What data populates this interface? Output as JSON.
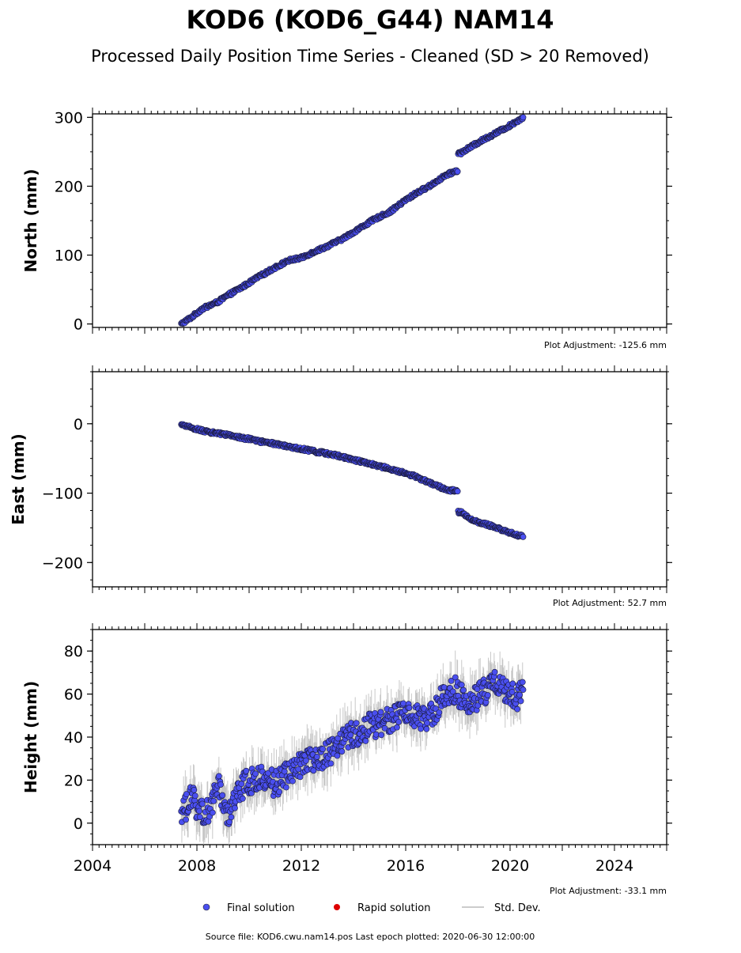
{
  "title": "KOD6 (KOD6_G44) NAM14",
  "subtitle": "Processed Daily Position Time Series - Cleaned (SD > 20 Removed)",
  "source_text": "Source file: KOD6.cwu.nam14.pos  Last epoch plotted: 2020-06-30 12:00:00",
  "legend": {
    "final": "Final solution",
    "rapid": "Rapid solution",
    "std": "Std. Dev.",
    "final_color": "#4a4ff0",
    "rapid_color": "#dd0000",
    "std_color": "#bbbbbb"
  },
  "chart_data": [
    {
      "type": "scatter",
      "component": "north",
      "ylabel": "North (mm)",
      "adjustment_text": "Plot Adjustment: -125.6 mm",
      "xlim": [
        2004.0,
        2026.0
      ],
      "ylim": [
        -5,
        305
      ],
      "yticks": [
        0,
        100,
        200,
        300
      ],
      "x_tick_labels": [],
      "series": [
        {
          "x": [
            2007.4,
            2007.8,
            2008.2,
            2008.8,
            2009.2,
            2009.8,
            2010.3,
            2010.9,
            2011.5,
            2012.0,
            2012.5,
            2013.0,
            2013.6,
            2014.2,
            2014.8,
            2015.4,
            2016.0,
            2016.5,
            2016.9,
            2017.5,
            2017.9,
            2018.1,
            2018.4,
            2018.9,
            2019.4,
            2019.9,
            2020.5
          ],
          "y": [
            0,
            10,
            22,
            32,
            42,
            55,
            67,
            80,
            92,
            96,
            105,
            113,
            124,
            138,
            152,
            163,
            180,
            192,
            200,
            215,
            222,
            248,
            255,
            266,
            276,
            286,
            300
          ]
        }
      ]
    },
    {
      "type": "scatter",
      "component": "east",
      "ylabel": "East (mm)",
      "adjustment_text": "Plot Adjustment: 52.7 mm",
      "xlim": [
        2004.0,
        2026.0
      ],
      "ylim": [
        -235,
        75
      ],
      "yticks": [
        0,
        -100,
        -200
      ],
      "x_tick_labels": [],
      "series": [
        {
          "x": [
            2007.4,
            2007.8,
            2008.2,
            2008.6,
            2009.0,
            2009.5,
            2010.0,
            2010.5,
            2011.0,
            2011.6,
            2012.0,
            2012.5,
            2013.0,
            2013.5,
            2014.0,
            2014.6,
            2015.2,
            2015.8,
            2016.3,
            2016.9,
            2017.5,
            2017.9,
            2018.1,
            2018.5,
            2019.0,
            2019.5,
            2020.0,
            2020.5
          ],
          "y": [
            -2,
            -6,
            -10,
            -13,
            -15,
            -19,
            -22,
            -26,
            -29,
            -34,
            -36,
            -40,
            -43,
            -47,
            -52,
            -57,
            -63,
            -69,
            -75,
            -85,
            -94,
            -97,
            -127,
            -138,
            -144,
            -150,
            -157,
            -163
          ]
        }
      ]
    },
    {
      "type": "scatter",
      "component": "height",
      "ylabel": "Height (mm)",
      "adjustment_text": "Plot Adjustment: -33.1 mm",
      "xlim": [
        2004.0,
        2026.0
      ],
      "ylim": [
        -10,
        90
      ],
      "yticks": [
        0,
        20,
        40,
        60,
        80
      ],
      "x_tick_labels": [
        "2004",
        "2008",
        "2012",
        "2016",
        "2020",
        "2024"
      ],
      "series": [
        {
          "x": [
            2007.4,
            2007.6,
            2007.8,
            2008.0,
            2008.3,
            2008.6,
            2008.8,
            2009.0,
            2009.2,
            2009.5,
            2009.8,
            2010.2,
            2010.6,
            2011.0,
            2011.4,
            2011.8,
            2012.2,
            2012.6,
            2013.0,
            2013.4,
            2013.8,
            2014.2,
            2014.6,
            2015.0,
            2015.4,
            2015.8,
            2016.2,
            2016.6,
            2017.0,
            2017.5,
            2017.9,
            2018.3,
            2018.7,
            2019.1,
            2019.5,
            2019.9,
            2020.3,
            2020.5
          ],
          "y": [
            2,
            8,
            14,
            6,
            4,
            8,
            20,
            8,
            2,
            12,
            18,
            20,
            22,
            18,
            22,
            25,
            30,
            28,
            32,
            36,
            40,
            42,
            45,
            46,
            48,
            50,
            52,
            48,
            50,
            60,
            62,
            56,
            58,
            62,
            65,
            60,
            58,
            62
          ]
        }
      ]
    }
  ]
}
